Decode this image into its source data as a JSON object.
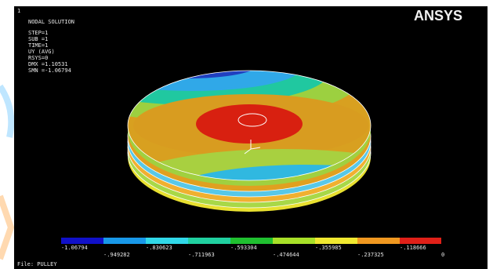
{
  "header": {
    "window_number": "1",
    "title": "NODAL SOLUTION",
    "logo": "ANSYS"
  },
  "info": [
    "STEP=1",
    "SUB =1",
    "TIME=1",
    "UY       (AVG)",
    "RSYS=0",
    "DMX =1.10531",
    "SMN =-1.06794"
  ],
  "legend": {
    "top": [
      "-1.06794",
      "-.830623",
      "-.593304",
      "-.355985",
      "-.118666"
    ],
    "bottom": [
      "-.949282",
      "-.711963",
      "-.474644",
      "-.237325",
      "0"
    ]
  },
  "footer": "File: PULLEY"
}
